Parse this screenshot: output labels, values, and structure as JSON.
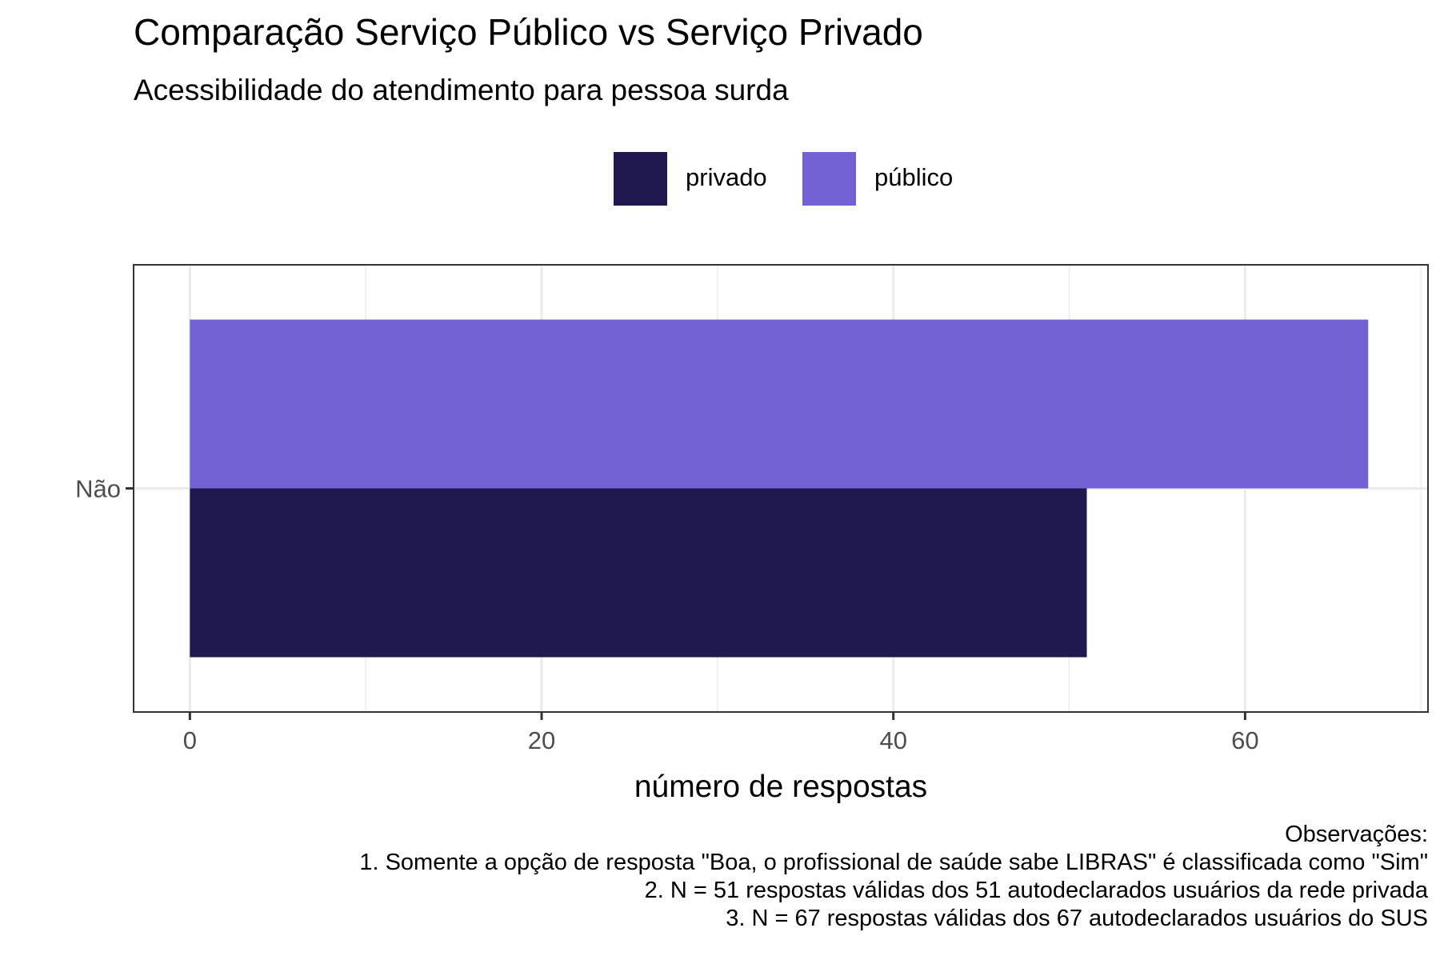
{
  "chart_data": {
    "type": "bar",
    "orientation": "horizontal",
    "title": "Comparação Serviço Público vs Serviço Privado",
    "subtitle": "Acessibilidade do atendimento para pessoa surda",
    "xlabel": "número de respostas",
    "ylabel": "",
    "categories": [
      "Não"
    ],
    "series": [
      {
        "name": "privado",
        "values": [
          51
        ],
        "color": "#1e1a4f"
      },
      {
        "name": "público",
        "values": [
          67
        ],
        "color": "#7163d3"
      }
    ],
    "xlim": [
      -3.2,
      70.4
    ],
    "xticks": [
      0,
      20,
      40,
      60
    ],
    "grid": true,
    "legend_position": "top",
    "notes": [
      "Observações:",
      "1. Somente a opção de resposta \"Boa, o profissional de saúde sabe LIBRAS\" é classificada como \"Sim\"",
      "2. N = 51 respostas válidas dos 51 autodeclarados usuários da rede privada",
      "3. N = 67 respostas válidas dos 67 autodeclarados usuários do SUS"
    ]
  }
}
